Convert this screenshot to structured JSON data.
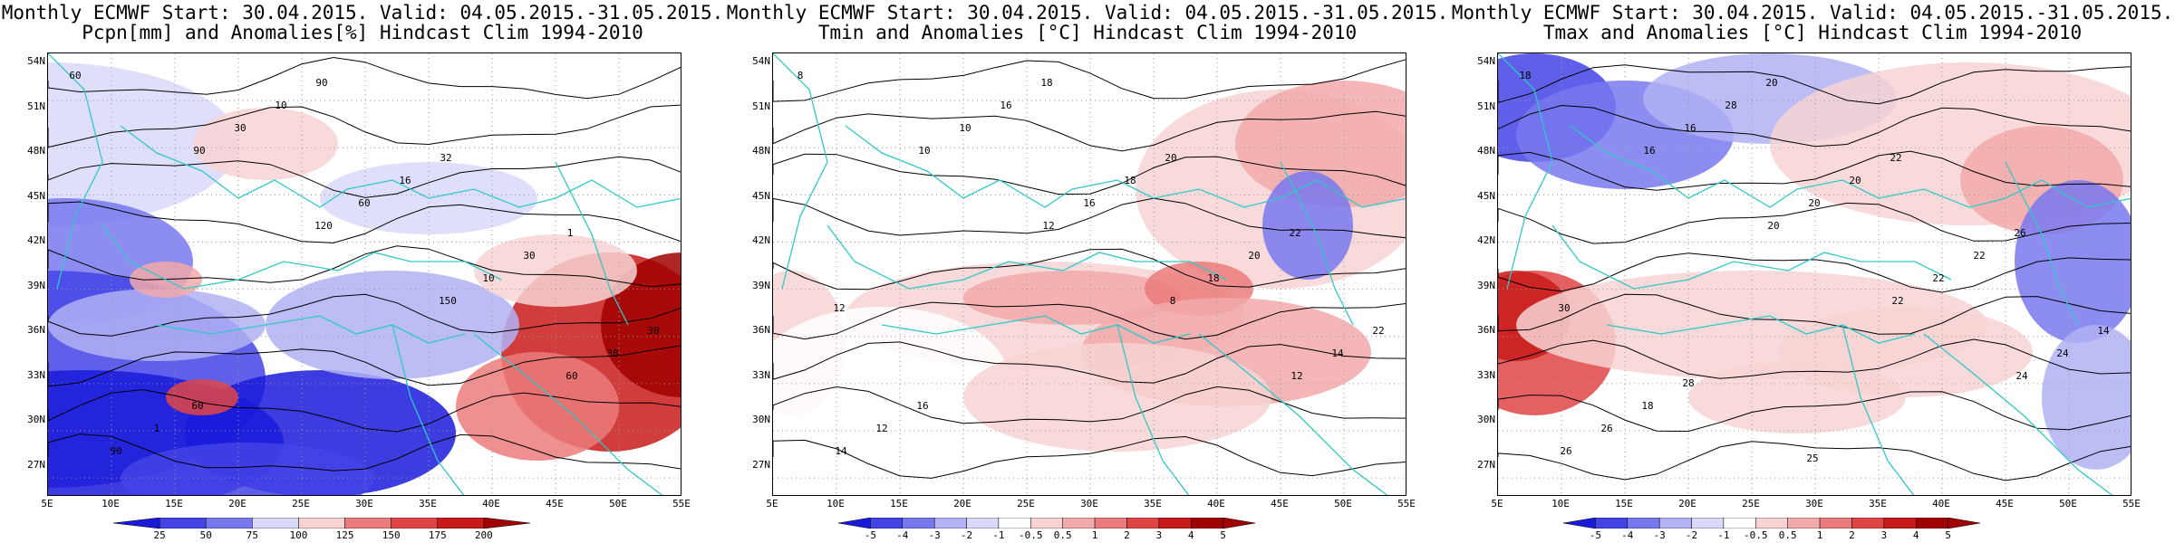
{
  "panels": [
    {
      "title1": "Monthly ECMWF Start: 30.04.2015. Valid: 04.05.2015.-31.05.2015.",
      "title2": "Pcpn[mm] and Anomalies[%] Hindcast Clim 1994-2010",
      "colorbar_labels": [
        "25",
        "50",
        "75",
        "100",
        "125",
        "150",
        "175",
        "200"
      ],
      "contour_labels": [
        "60",
        "90",
        "120",
        "150",
        "60",
        "90",
        "30",
        "60",
        "10",
        "30",
        "1",
        "10",
        "16",
        "30",
        "30",
        "60",
        "90",
        "32",
        "1"
      ]
    },
    {
      "title1": "Monthly ECMWF Start: 30.04.2015. Valid: 04.05.2015.-31.05.2015.",
      "title2": "Tmin and Anomalies [°C] Hindcast Clim 1994-2010",
      "colorbar_labels": [
        "-5",
        "-4",
        "-3",
        "-2",
        "-1",
        "-0.5",
        "0.5",
        "1",
        "2",
        "3",
        "4",
        "5"
      ],
      "contour_labels": [
        "8",
        "10",
        "12",
        "8",
        "12",
        "14",
        "10",
        "16",
        "18",
        "14",
        "12",
        "16",
        "18",
        "20",
        "22",
        "16",
        "18",
        "20",
        "22",
        "12"
      ]
    },
    {
      "title1": "Monthly ECMWF Start: 30.04.2015. Valid: 04.05.2015.-31.05.2015.",
      "title2": "Tmax and Anomalies [°C] Hindcast Clim 1994-2010",
      "colorbar_labels": [
        "-5",
        "-4",
        "-3",
        "-2",
        "-1",
        "-0.5",
        "0.5",
        "1",
        "2",
        "3",
        "4",
        "5"
      ],
      "contour_labels": [
        "18",
        "16",
        "20",
        "22",
        "24",
        "26",
        "16",
        "20",
        "22",
        "24",
        "26",
        "28",
        "20",
        "22",
        "14",
        "18",
        "20",
        "22",
        "26",
        "30",
        "28",
        "25"
      ]
    }
  ],
  "lat_ticks": [
    "54N",
    "51N",
    "48N",
    "45N",
    "42N",
    "39N",
    "36N",
    "33N",
    "30N",
    "27N"
  ],
  "lon_ticks": [
    "5E",
    "10E",
    "15E",
    "20E",
    "25E",
    "30E",
    "35E",
    "40E",
    "45E",
    "50E",
    "55E"
  ],
  "colors": {
    "anomaly_scale": [
      "#1a1adb",
      "#4343e6",
      "#7878ee",
      "#b2b2f5",
      "#d9d9fa",
      "#ffffff",
      "#f7d3d3",
      "#f2a9a9",
      "#ec7b7b",
      "#e04545",
      "#c91a1a",
      "#a00000"
    ],
    "coastline": "#30c8c8",
    "contour": "#000000"
  }
}
